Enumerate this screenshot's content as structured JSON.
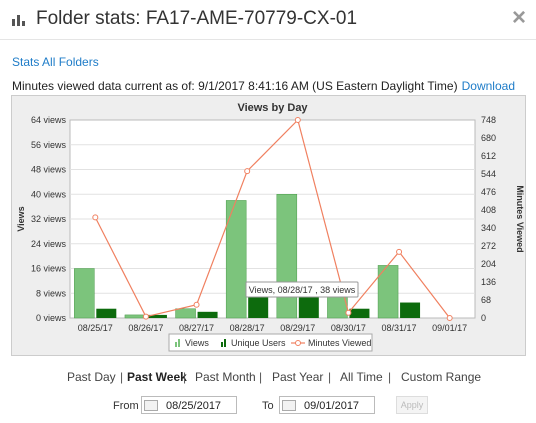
{
  "header": {
    "title": "Folder stats: FA17-AME-70779-CX-01",
    "close_label": "×"
  },
  "links": {
    "stats_all_folders": "Stats All Folders",
    "download": "Download"
  },
  "info": {
    "minutes_line": "Minutes viewed data current as of: 9/1/2017 8:41:16 AM (US Eastern Daylight Time)"
  },
  "chart_data": {
    "type": "bar",
    "title": "Views by Day",
    "ylabel": "Views",
    "y2label": "Minutes Viewed",
    "categories": [
      "08/25/17",
      "08/26/17",
      "08/27/17",
      "08/28/17",
      "08/29/17",
      "08/30/17",
      "08/31/17",
      "09/01/17"
    ],
    "ylim": [
      0,
      64
    ],
    "y2lim": [
      0,
      748
    ],
    "yticks": [
      "0 views",
      "8 views",
      "16 views",
      "24 views",
      "32 views",
      "40 views",
      "48 views",
      "56 views",
      "64 views"
    ],
    "y2ticks": [
      "0",
      "68",
      "136",
      "204",
      "272",
      "340",
      "408",
      "476",
      "544",
      "612",
      "680",
      "748"
    ],
    "series": [
      {
        "name": "Views",
        "kind": "bar",
        "color": "#7cc47c",
        "values": [
          16,
          1,
          3,
          38,
          40,
          9,
          17,
          0
        ]
      },
      {
        "name": "Unique Users",
        "kind": "bar",
        "color": "#0d6b0d",
        "values": [
          3,
          1,
          2,
          7,
          11,
          3,
          5,
          0
        ]
      },
      {
        "name": "Minutes Viewed",
        "kind": "line",
        "color": "#f08060",
        "axis": "right",
        "values": [
          380,
          5,
          50,
          555,
          748,
          20,
          250,
          0
        ]
      }
    ],
    "tooltip": "Views, 08/28/17 , 38 views",
    "legend_position": "bottom",
    "grid": true
  },
  "range": {
    "options": [
      "Past Day",
      "Past Week",
      "Past Month",
      "Past Year",
      "All Time",
      "Custom Range"
    ],
    "active": "Past Week",
    "separator": "|"
  },
  "dates": {
    "from_label": "From",
    "from_value": "08/25/2017",
    "to_label": "To",
    "to_value": "09/01/2017",
    "apply_label": "Apply"
  },
  "colors": {
    "link": "#1e7cc8",
    "views_bar": "#7cc47c",
    "unique_bar": "#0d6b0d",
    "minutes_line": "#f08060"
  }
}
